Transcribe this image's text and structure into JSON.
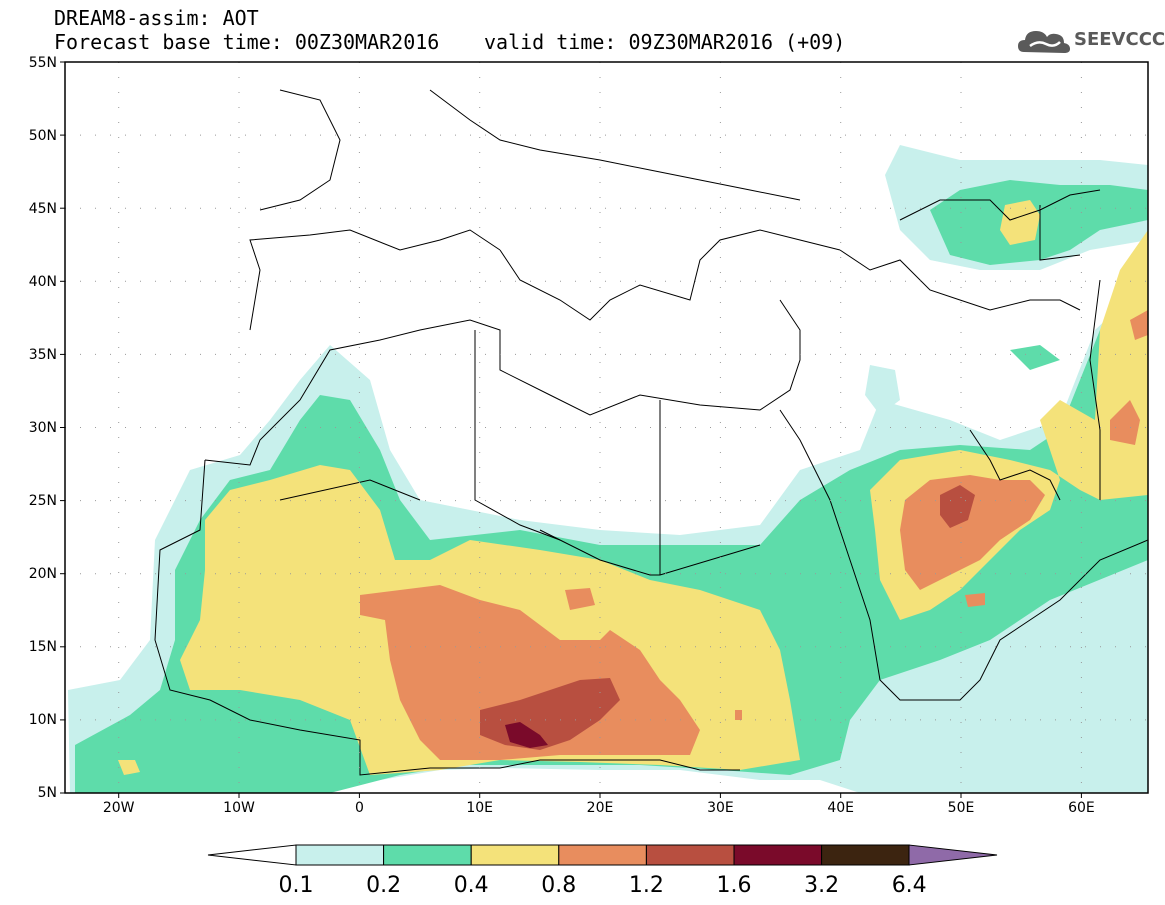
{
  "header": {
    "title": "DREAM8-assim: AOT",
    "forecast_base": "Forecast base time: 00Z30MAR2016",
    "valid_time": "valid time: 09Z30MAR2016 (+09)"
  },
  "logo": {
    "text": "SEEVCCC",
    "icon": "cloud-icon"
  },
  "map": {
    "lat_labels": [
      "55N",
      "50N",
      "45N",
      "40N",
      "35N",
      "30N",
      "25N",
      "20N",
      "15N",
      "10N",
      "5N"
    ],
    "lon_labels": [
      "20W",
      "10W",
      "0",
      "10E",
      "20E",
      "30E",
      "40E",
      "50E",
      "60E"
    ],
    "extent": {
      "lon": [
        -25,
        65
      ],
      "lat": [
        5,
        55
      ]
    }
  },
  "colorbar": {
    "levels": [
      "0.1",
      "0.2",
      "0.4",
      "0.8",
      "1.2",
      "1.6",
      "3.2",
      "6.4"
    ],
    "colors": [
      "#c8f0ec",
      "#5edcaa",
      "#f4e27a",
      "#e88d5e",
      "#b84f40",
      "#7a0a2a",
      "#3c2410",
      "#8f6aa8"
    ],
    "under_color": "#ffffff"
  }
}
